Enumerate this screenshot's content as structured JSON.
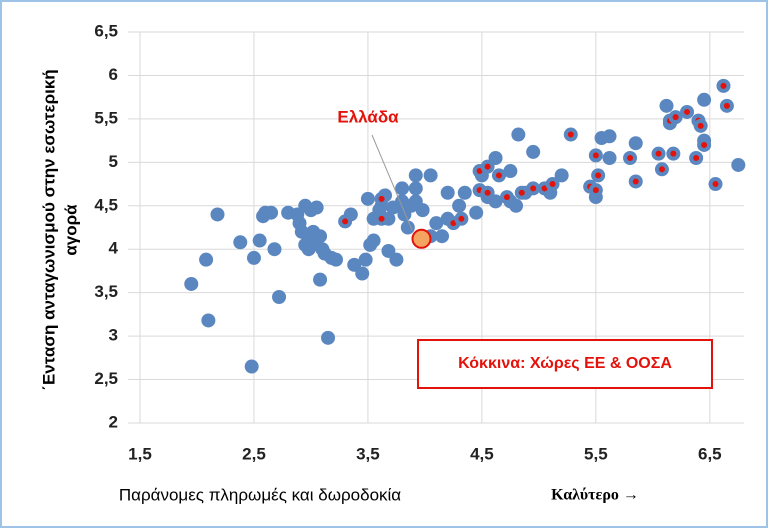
{
  "chart_data": {
    "type": "scatter",
    "ylabel": [
      "΄Ενταση ανταγωνισμού στην εσωτερική",
      "αγορά"
    ],
    "xlabel": "Παράνομες πληρωμές και δωροδοκία",
    "xnote": "Καλύτερο →",
    "legend_note": "Κόκκινα: Χώρες ΕΕ & ΟΟΣΑ",
    "xlim": [
      1.5,
      6.8
    ],
    "ylim": [
      2,
      6.5
    ],
    "xticks": [
      {
        "value": 1.5,
        "label": "1,5"
      },
      {
        "value": 2.5,
        "label": "2,5"
      },
      {
        "value": 3.5,
        "label": "3,5"
      },
      {
        "value": 4.5,
        "label": "4,5"
      },
      {
        "value": 5.5,
        "label": "5,5"
      },
      {
        "value": 6.5,
        "label": "6,5"
      }
    ],
    "yticks": [
      2,
      {
        "value": 2.5,
        "label": "2,5"
      },
      3,
      {
        "value": 3.5,
        "label": "3,5"
      },
      4,
      {
        "value": 4.5,
        "label": "4,5"
      },
      5,
      {
        "value": 5.5,
        "label": "5,5"
      },
      6,
      {
        "value": 6.5,
        "label": "6,5"
      }
    ],
    "grid": true,
    "series": [
      {
        "color": "#5b87c0",
        "x": [
          1.95,
          2.1,
          2.08,
          2.18,
          2.38,
          2.48,
          2.5,
          2.55,
          2.58,
          2.6,
          2.65,
          2.68,
          2.72,
          2.8,
          2.88,
          2.9,
          2.92,
          2.95,
          2.95,
          2.98,
          3.0,
          3.0,
          3.02,
          3.05,
          3.05,
          3.08,
          3.08,
          3.1,
          3.12,
          3.15,
          3.18,
          3.22,
          3.35,
          3.38,
          3.45,
          3.48,
          3.52,
          3.5,
          3.55,
          3.55,
          3.6,
          3.62,
          3.65,
          3.68,
          3.68,
          3.72,
          3.75,
          3.78,
          3.8,
          3.8,
          3.82,
          3.85,
          3.88,
          3.92,
          3.92,
          3.92,
          3.98,
          4.05,
          4.05,
          4.1,
          4.15,
          4.2,
          4.2,
          4.3,
          4.35,
          4.45,
          4.5,
          4.55,
          4.62,
          4.62,
          4.75,
          4.75,
          4.8,
          4.82,
          4.88,
          4.95,
          5.1,
          5.2,
          5.5,
          5.55,
          5.62,
          5.62,
          5.85,
          6.12,
          6.15,
          6.45,
          6.45,
          6.75
        ],
        "values": [
          3.6,
          3.18,
          3.88,
          4.4,
          4.08,
          2.65,
          3.9,
          4.1,
          4.38,
          4.42,
          4.42,
          4.0,
          3.45,
          4.42,
          4.4,
          4.3,
          4.2,
          4.5,
          4.05,
          4.0,
          4.15,
          4.45,
          4.2,
          4.48,
          4.1,
          4.15,
          3.65,
          4.0,
          3.95,
          2.98,
          3.9,
          3.88,
          4.4,
          3.82,
          3.72,
          3.88,
          4.05,
          4.58,
          4.1,
          4.35,
          4.45,
          4.5,
          4.62,
          4.35,
          3.98,
          4.48,
          3.88,
          4.5,
          4.7,
          4.55,
          4.4,
          4.25,
          4.5,
          4.55,
          4.85,
          4.7,
          4.45,
          4.85,
          4.15,
          4.3,
          4.15,
          4.35,
          4.65,
          4.5,
          4.65,
          4.42,
          4.85,
          4.6,
          4.55,
          5.05,
          4.9,
          4.55,
          4.5,
          5.32,
          4.65,
          5.12,
          4.65,
          4.85,
          4.6,
          5.28,
          5.3,
          5.05,
          5.22,
          5.65,
          5.45,
          5.72,
          5.25,
          4.97
        ]
      },
      {
        "color": "#e3120b",
        "x": [
          3.3,
          3.62,
          3.62,
          4.25,
          4.32,
          4.48,
          4.48,
          4.55,
          4.55,
          4.65,
          4.72,
          4.85,
          4.95,
          5.05,
          5.12,
          5.28,
          5.45,
          5.5,
          5.5,
          5.52,
          5.8,
          5.85,
          6.05,
          6.08,
          6.18,
          6.15,
          6.2,
          6.3,
          6.38,
          6.4,
          6.42,
          6.45,
          6.55,
          6.62,
          6.65
        ],
        "values": [
          4.32,
          4.58,
          4.35,
          4.3,
          4.35,
          4.68,
          4.9,
          4.95,
          4.65,
          4.85,
          4.6,
          4.65,
          4.7,
          4.7,
          4.75,
          5.32,
          4.72,
          4.68,
          5.08,
          4.85,
          5.05,
          4.78,
          5.1,
          4.92,
          5.1,
          5.48,
          5.52,
          5.58,
          5.05,
          5.48,
          5.42,
          5.2,
          4.75,
          5.88,
          5.65
        ]
      },
      {
        "name": "Ελλάδα",
        "color": "#f4a460",
        "x": [
          3.97
        ],
        "values": [
          4.12
        ]
      }
    ]
  }
}
